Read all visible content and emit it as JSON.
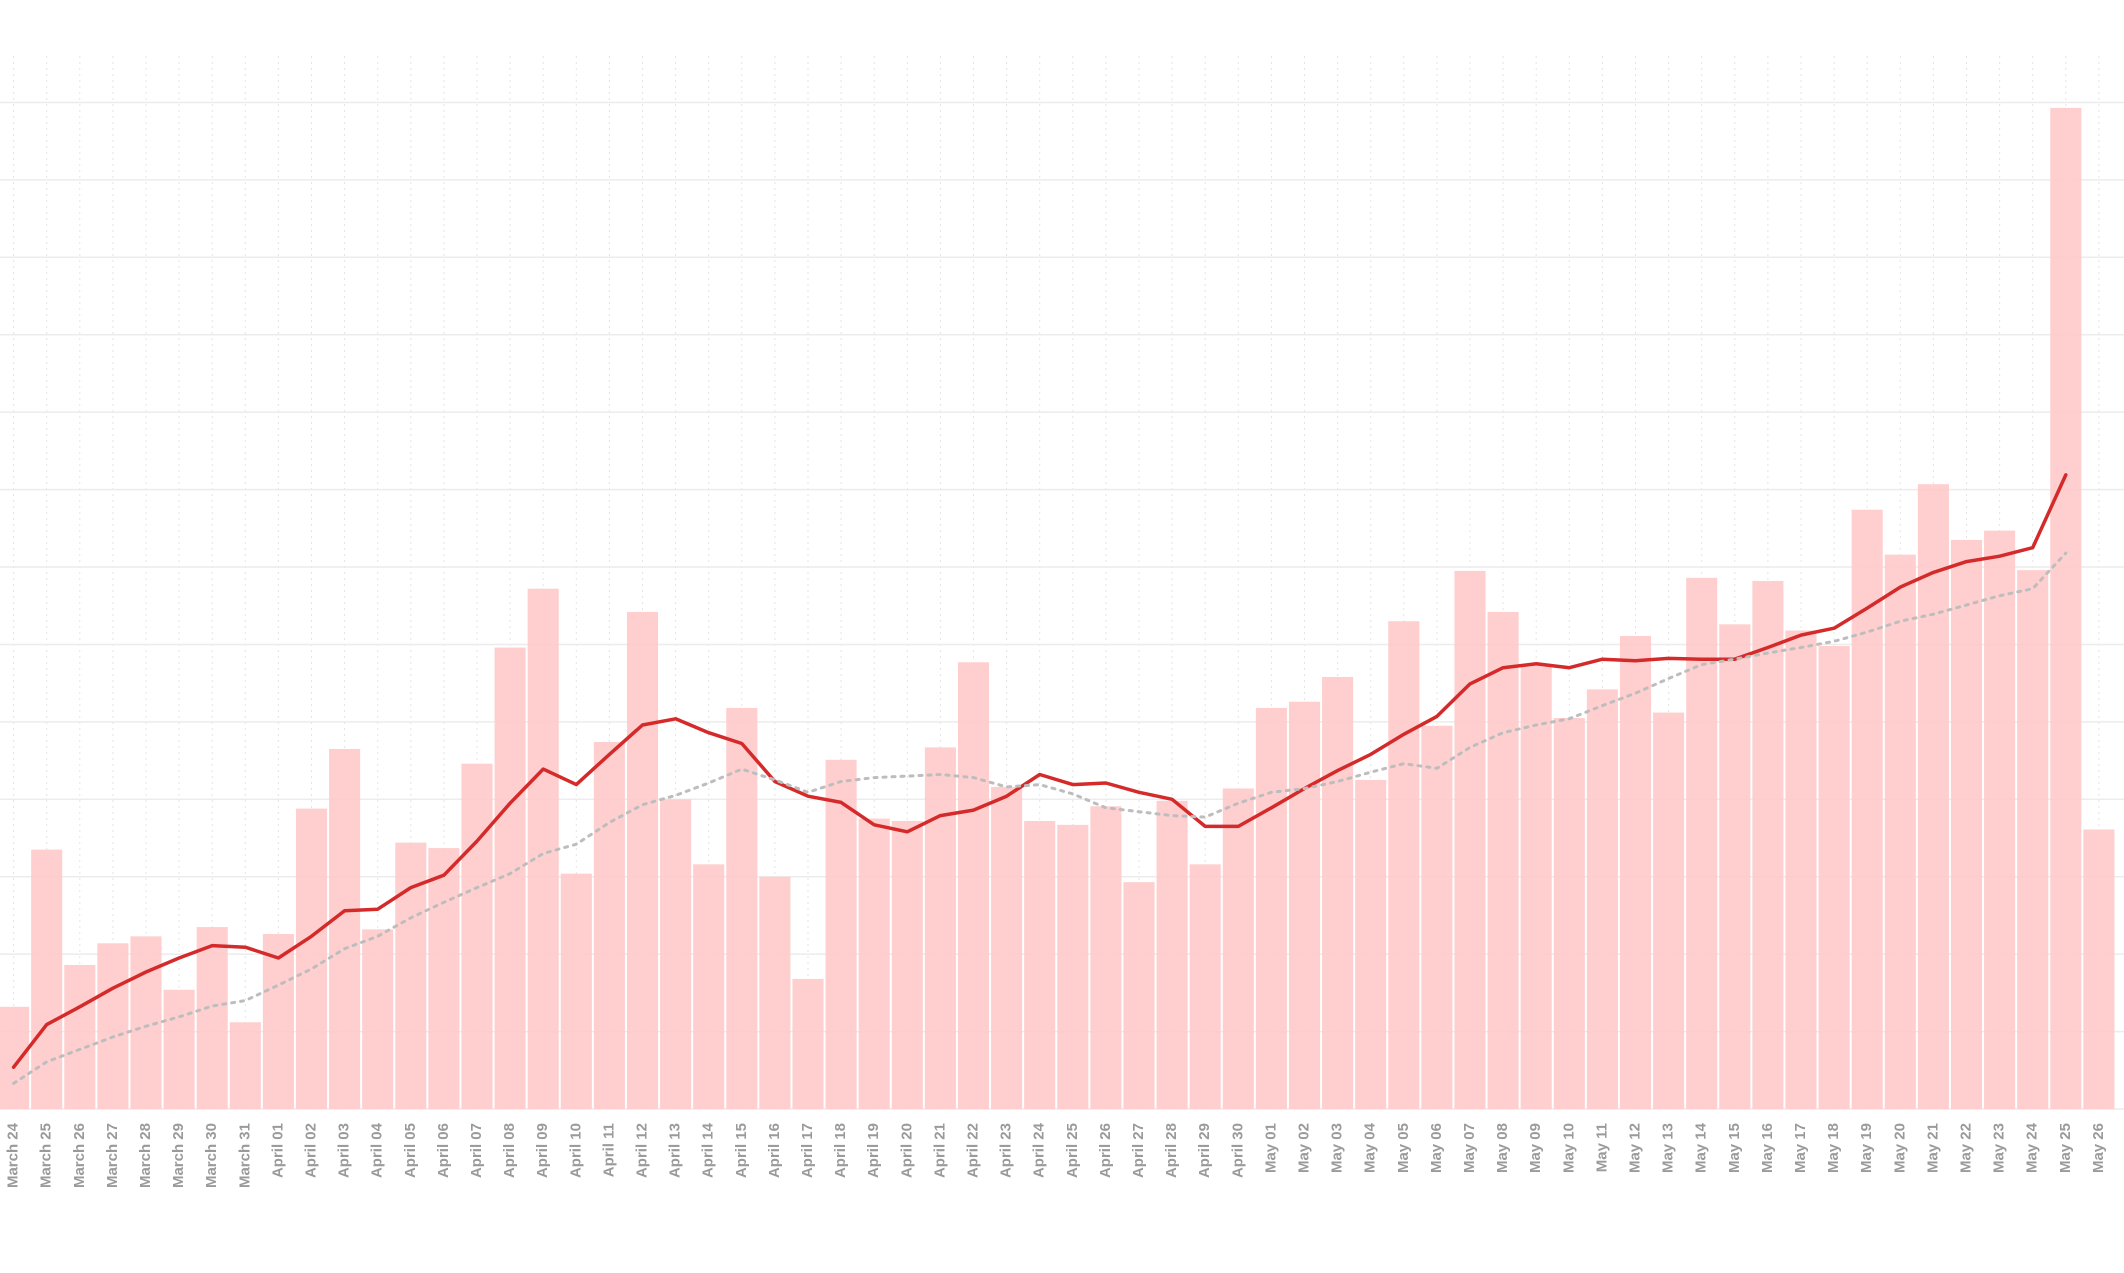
{
  "chart_data": {
    "type": "bar",
    "categories": [
      "March 24",
      "March 25",
      "March 26",
      "March 27",
      "March 28",
      "March 29",
      "March 30",
      "March 31",
      "April 01",
      "April 02",
      "April 03",
      "April 04",
      "April 05",
      "April 06",
      "April 07",
      "April 08",
      "April 09",
      "April 10",
      "April 11",
      "April 12",
      "April 13",
      "April 14",
      "April 15",
      "April 16",
      "April 17",
      "April 18",
      "April 19",
      "April 20",
      "April 21",
      "April 22",
      "April 23",
      "April 24",
      "April 25",
      "April 26",
      "April 27",
      "April 28",
      "April 29",
      "April 30",
      "May 01",
      "May 02",
      "May 03",
      "May 04",
      "May 05",
      "May 06",
      "May 07",
      "May 08",
      "May 09",
      "May 10",
      "May 11",
      "May 12",
      "May 13",
      "May 14",
      "May 15",
      "May 16",
      "May 17",
      "May 18",
      "May 19",
      "May 20",
      "May 21",
      "May 22",
      "May 23",
      "May 24",
      "May 25",
      "May 26"
    ],
    "values": [
      1.32,
      3.35,
      1.86,
      2.14,
      2.23,
      1.54,
      2.35,
      1.12,
      2.26,
      3.88,
      4.65,
      2.32,
      3.44,
      3.37,
      4.46,
      5.96,
      6.72,
      3.04,
      4.74,
      6.42,
      4.0,
      3.16,
      5.18,
      3.0,
      1.68,
      4.51,
      3.75,
      3.72,
      4.67,
      5.77,
      4.16,
      3.72,
      3.67,
      3.91,
      2.93,
      3.98,
      3.16,
      4.14,
      5.18,
      5.26,
      5.58,
      4.25,
      6.3,
      4.95,
      6.95,
      6.42,
      5.74,
      5.05,
      5.42,
      6.11,
      5.12,
      6.86,
      6.26,
      6.82,
      6.18,
      5.98,
      7.74,
      7.16,
      8.07,
      7.35,
      7.47,
      6.96,
      12.93,
      3.61
    ],
    "color": "#ffcaca",
    "lines": [
      {
        "color": "#d42a2a",
        "dash": false,
        "values": [
          0.54,
          1.09,
          1.32,
          1.56,
          1.77,
          1.95,
          2.11,
          2.09,
          1.95,
          2.23,
          2.56,
          2.58,
          2.86,
          3.02,
          3.46,
          3.95,
          4.39,
          4.19,
          4.58,
          4.96,
          5.04,
          4.86,
          4.72,
          4.23,
          4.04,
          3.96,
          3.67,
          3.58,
          3.79,
          3.86,
          4.04,
          4.32,
          4.19,
          4.21,
          4.09,
          4.0,
          3.65,
          3.65,
          3.89,
          4.14,
          4.37,
          4.58,
          4.84,
          5.07,
          5.49,
          5.7,
          5.75,
          5.7,
          5.81,
          5.79,
          5.82,
          5.81,
          5.81,
          5.96,
          6.12,
          6.21,
          6.47,
          6.74,
          6.93,
          7.07,
          7.14,
          7.25,
          8.19,
          null
        ]
      },
      {
        "color": "#bdbdbd",
        "dash": true,
        "values": [
          0.33,
          0.61,
          0.77,
          0.93,
          1.07,
          1.19,
          1.33,
          1.4,
          1.6,
          1.81,
          2.07,
          2.23,
          2.47,
          2.67,
          2.86,
          3.04,
          3.3,
          3.42,
          3.7,
          3.93,
          4.05,
          4.21,
          4.39,
          4.25,
          4.09,
          4.23,
          4.28,
          4.3,
          4.32,
          4.28,
          4.16,
          4.19,
          4.07,
          3.89,
          3.84,
          3.79,
          3.77,
          3.95,
          4.09,
          4.14,
          4.23,
          4.35,
          4.46,
          4.4,
          4.67,
          4.86,
          4.96,
          5.04,
          5.21,
          5.37,
          5.56,
          5.74,
          5.81,
          5.89,
          5.96,
          6.04,
          6.16,
          6.3,
          6.39,
          6.51,
          6.63,
          6.72,
          7.18,
          null
        ]
      }
    ],
    "ylim": [
      0,
      13.6
    ],
    "yticks": [
      0,
      1,
      2,
      3,
      4,
      5,
      6,
      7,
      8,
      9,
      10,
      11,
      12,
      13
    ],
    "grid": true
  }
}
